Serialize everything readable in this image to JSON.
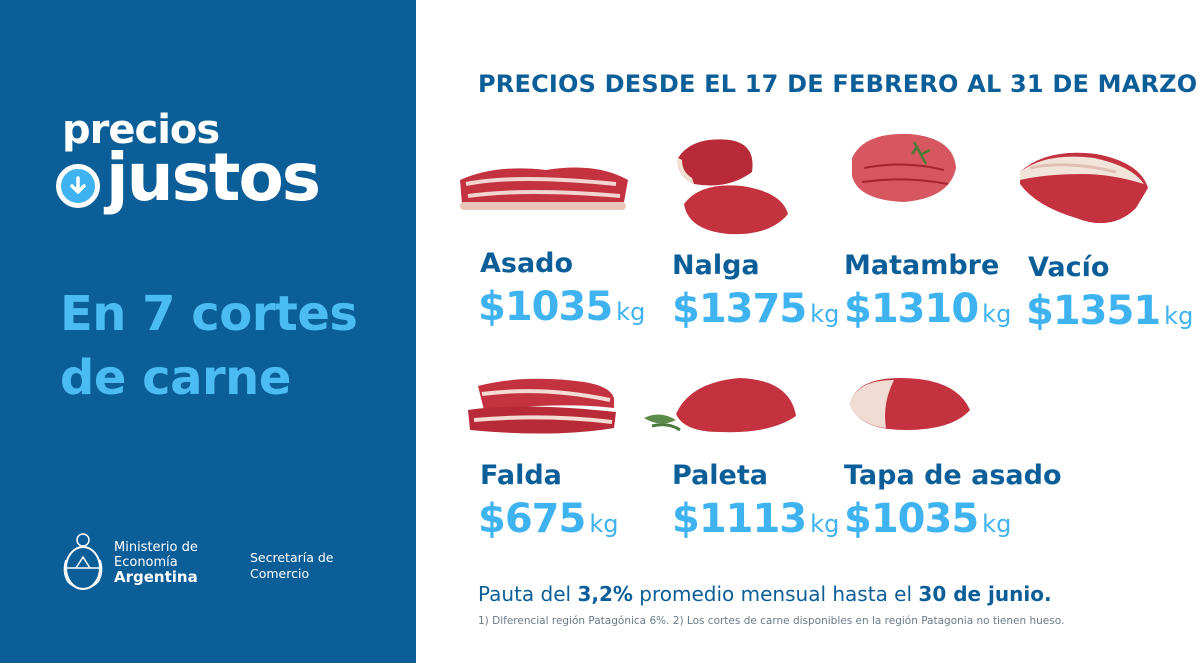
{
  "logo": {
    "line1": "precios",
    "line2": "justos"
  },
  "headline": {
    "line1": "En 7 cortes",
    "line2": "de carne"
  },
  "ministry": {
    "line1": "Ministerio de",
    "line2": "Economía",
    "line3": "Argentina",
    "secretaria1": "Secretaría de",
    "secretaria2": "Comercio"
  },
  "title": "PRECIOS DESDE EL 17 DE FEBRERO AL 31 DE MARZO",
  "cuts": [
    {
      "name": "Asado",
      "price": "$1035",
      "unit": "kg"
    },
    {
      "name": "Nalga",
      "price": "$1375",
      "unit": "kg"
    },
    {
      "name": "Matambre",
      "price": "$1310",
      "unit": "kg"
    },
    {
      "name": "Vacío",
      "price": "$1351",
      "unit": "kg"
    },
    {
      "name": "Falda",
      "price": "$675",
      "unit": "kg"
    },
    {
      "name": "Paleta",
      "price": "$1113",
      "unit": "kg"
    },
    {
      "name": "Tapa de asado",
      "price": "$1035",
      "unit": "kg"
    }
  ],
  "pauta": {
    "pre": "Pauta del ",
    "pct": "3,2%",
    "mid": " promedio mensual hasta el ",
    "date": "30 de junio."
  },
  "footnote": "1) Diferencial región Patagónica 6%. 2) Los cortes de carne disponibles en la región Patagonia no tienen hueso.",
  "colors": {
    "panel": "#0b5e97",
    "accent": "#3fb3f0",
    "meat": "#c4323f"
  }
}
